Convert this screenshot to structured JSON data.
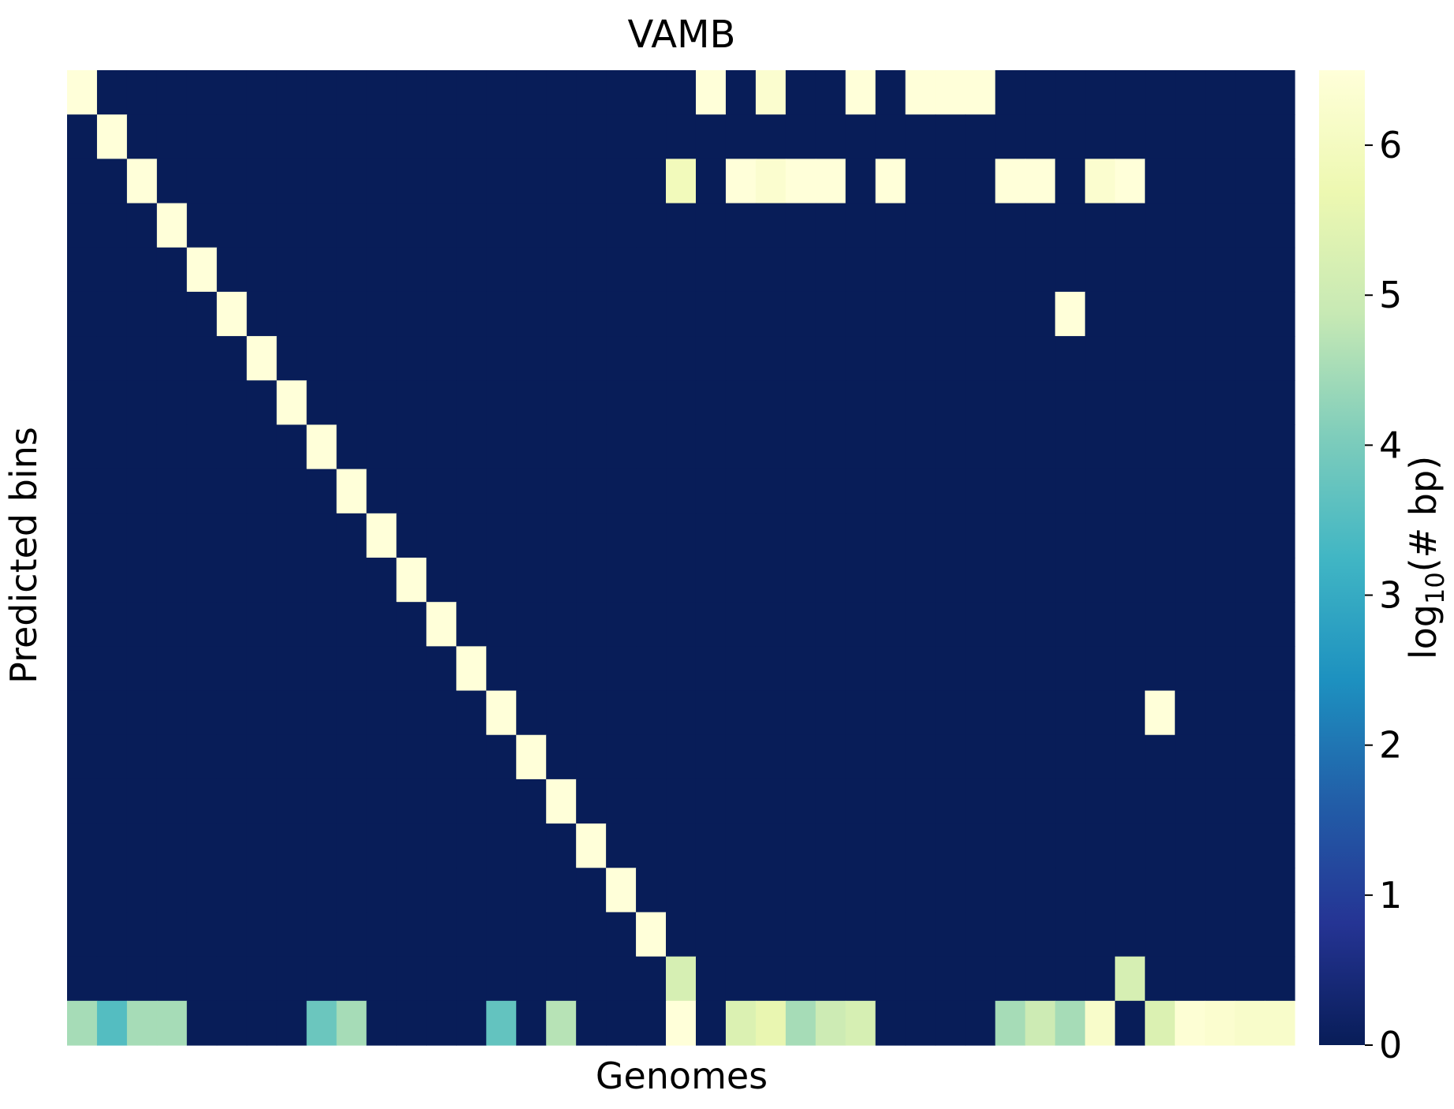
{
  "chart_data": {
    "type": "heatmap",
    "title": "VAMB",
    "xlabel": "Genomes",
    "ylabel": "Predicted bins",
    "colorbar": {
      "label_base": "log",
      "label_sub": "10",
      "label_rest": "(# bp)",
      "range": [
        0,
        6.5
      ],
      "ticks": [
        "0",
        "1",
        "2",
        "3",
        "4",
        "5",
        "6"
      ],
      "colormap": "YlGnBu",
      "stops": [
        "#081d58",
        "#253494",
        "#225ea8",
        "#1d91c0",
        "#41b6c4",
        "#7fcdbb",
        "#c7e9b4",
        "#edf8b1",
        "#ffffd9"
      ]
    },
    "n_cols": 41,
    "n_rows": 22,
    "values": [
      [
        6.5,
        0,
        0,
        0,
        0,
        0,
        0,
        0,
        0,
        0,
        0,
        0,
        0,
        0,
        0,
        0,
        0,
        0,
        0,
        0,
        0,
        6.5,
        0,
        6.3,
        0,
        0,
        6.5,
        0,
        6.5,
        6.5,
        6.5,
        0,
        0,
        0,
        0,
        0,
        0,
        0,
        0,
        0,
        0
      ],
      [
        0,
        6.5,
        0,
        0,
        0,
        0,
        0,
        0,
        0,
        0,
        0,
        0,
        0,
        0,
        0,
        0,
        0,
        0,
        0,
        0,
        0,
        0,
        0,
        0,
        0,
        0,
        0,
        0,
        0,
        0,
        0,
        0,
        0,
        0,
        0,
        0,
        0,
        0,
        0,
        0,
        0
      ],
      [
        0,
        0,
        6.5,
        0,
        0,
        0,
        0,
        0,
        0,
        0,
        0,
        0,
        0,
        0,
        0,
        0,
        0,
        0,
        0,
        0,
        5.9,
        0,
        6.5,
        6.3,
        6.5,
        6.5,
        0,
        6.5,
        0,
        0,
        0,
        6.5,
        6.5,
        0,
        6.3,
        6.5,
        0,
        0,
        0,
        0,
        0
      ],
      [
        0,
        0,
        0,
        6.5,
        0,
        0,
        0,
        0,
        0,
        0,
        0,
        0,
        0,
        0,
        0,
        0,
        0,
        0,
        0,
        0,
        0,
        0,
        0,
        0,
        0,
        0,
        0,
        0,
        0,
        0,
        0,
        0,
        0,
        0,
        0,
        0,
        0,
        0,
        0,
        0,
        0
      ],
      [
        0,
        0,
        0,
        0,
        6.5,
        0,
        0,
        0,
        0,
        0,
        0,
        0,
        0,
        0,
        0,
        0,
        0,
        0,
        0,
        0,
        0,
        0,
        0,
        0,
        0,
        0,
        0,
        0,
        0,
        0,
        0,
        0,
        0,
        0,
        0,
        0,
        0,
        0,
        0,
        0,
        0
      ],
      [
        0,
        0,
        0,
        0,
        0,
        6.5,
        0,
        0,
        0,
        0,
        0,
        0,
        0,
        0,
        0,
        0,
        0,
        0,
        0,
        0,
        0,
        0,
        0,
        0,
        0,
        0,
        0,
        0,
        0,
        0,
        0,
        0,
        0,
        6.5,
        0,
        0,
        0,
        0,
        0,
        0,
        0
      ],
      [
        0,
        0,
        0,
        0,
        0,
        0,
        6.5,
        0,
        0,
        0,
        0,
        0,
        0,
        0,
        0,
        0,
        0,
        0,
        0,
        0,
        0,
        0,
        0,
        0,
        0,
        0,
        0,
        0,
        0,
        0,
        0,
        0,
        0,
        0,
        0,
        0,
        0,
        0,
        0,
        0,
        0
      ],
      [
        0,
        0,
        0,
        0,
        0,
        0,
        0,
        6.5,
        0,
        0,
        0,
        0,
        0,
        0,
        0,
        0,
        0,
        0,
        0,
        0,
        0,
        0,
        0,
        0,
        0,
        0,
        0,
        0,
        0,
        0,
        0,
        0,
        0,
        0,
        0,
        0,
        0,
        0,
        0,
        0,
        0
      ],
      [
        0,
        0,
        0,
        0,
        0,
        0,
        0,
        0,
        6.5,
        0,
        0,
        0,
        0,
        0,
        0,
        0,
        0,
        0,
        0,
        0,
        0,
        0,
        0,
        0,
        0,
        0,
        0,
        0,
        0,
        0,
        0,
        0,
        0,
        0,
        0,
        0,
        0,
        0,
        0,
        0,
        0
      ],
      [
        0,
        0,
        0,
        0,
        0,
        0,
        0,
        0,
        0,
        6.5,
        0,
        0,
        0,
        0,
        0,
        0,
        0,
        0,
        0,
        0,
        0,
        0,
        0,
        0,
        0,
        0,
        0,
        0,
        0,
        0,
        0,
        0,
        0,
        0,
        0,
        0,
        0,
        0,
        0,
        0,
        0
      ],
      [
        0,
        0,
        0,
        0,
        0,
        0,
        0,
        0,
        0,
        0,
        6.5,
        0,
        0,
        0,
        0,
        0,
        0,
        0,
        0,
        0,
        0,
        0,
        0,
        0,
        0,
        0,
        0,
        0,
        0,
        0,
        0,
        0,
        0,
        0,
        0,
        0,
        0,
        0,
        0,
        0,
        0
      ],
      [
        0,
        0,
        0,
        0,
        0,
        0,
        0,
        0,
        0,
        0,
        0,
        6.5,
        0,
        0,
        0,
        0,
        0,
        0,
        0,
        0,
        0,
        0,
        0,
        0,
        0,
        0,
        0,
        0,
        0,
        0,
        0,
        0,
        0,
        0,
        0,
        0,
        0,
        0,
        0,
        0,
        0
      ],
      [
        0,
        0,
        0,
        0,
        0,
        0,
        0,
        0,
        0,
        0,
        0,
        0,
        6.5,
        0,
        0,
        0,
        0,
        0,
        0,
        0,
        0,
        0,
        0,
        0,
        0,
        0,
        0,
        0,
        0,
        0,
        0,
        0,
        0,
        0,
        0,
        0,
        0,
        0,
        0,
        0,
        0
      ],
      [
        0,
        0,
        0,
        0,
        0,
        0,
        0,
        0,
        0,
        0,
        0,
        0,
        0,
        6.5,
        0,
        0,
        0,
        0,
        0,
        0,
        0,
        0,
        0,
        0,
        0,
        0,
        0,
        0,
        0,
        0,
        0,
        0,
        0,
        0,
        0,
        0,
        0,
        0,
        0,
        0,
        0
      ],
      [
        0,
        0,
        0,
        0,
        0,
        0,
        0,
        0,
        0,
        0,
        0,
        0,
        0,
        0,
        6.5,
        0,
        0,
        0,
        0,
        0,
        0,
        0,
        0,
        0,
        0,
        0,
        0,
        0,
        0,
        0,
        0,
        0,
        0,
        0,
        0,
        0,
        6.5,
        0,
        0,
        0,
        0
      ],
      [
        0,
        0,
        0,
        0,
        0,
        0,
        0,
        0,
        0,
        0,
        0,
        0,
        0,
        0,
        0,
        6.5,
        0,
        0,
        0,
        0,
        0,
        0,
        0,
        0,
        0,
        0,
        0,
        0,
        0,
        0,
        0,
        0,
        0,
        0,
        0,
        0,
        0,
        0,
        0,
        0,
        0
      ],
      [
        0,
        0,
        0,
        0,
        0,
        0,
        0,
        0,
        0,
        0,
        0,
        0,
        0,
        0,
        0,
        0,
        6.5,
        0,
        0,
        0,
        0,
        0,
        0,
        0,
        0,
        0,
        0,
        0,
        0,
        0,
        0,
        0,
        0,
        0,
        0,
        0,
        0,
        0,
        0,
        0,
        0
      ],
      [
        0,
        0,
        0,
        0,
        0,
        0,
        0,
        0,
        0,
        0,
        0,
        0,
        0,
        0,
        0,
        0,
        0,
        6.5,
        0,
        0,
        0,
        0,
        0,
        0,
        0,
        0,
        0,
        0,
        0,
        0,
        0,
        0,
        0,
        0,
        0,
        0,
        0,
        0,
        0,
        0,
        0
      ],
      [
        0,
        0,
        0,
        0,
        0,
        0,
        0,
        0,
        0,
        0,
        0,
        0,
        0,
        0,
        0,
        0,
        0,
        0,
        6.5,
        0,
        0,
        0,
        0,
        0,
        0,
        0,
        0,
        0,
        0,
        0,
        0,
        0,
        0,
        0,
        0,
        0,
        0,
        0,
        0,
        0,
        0
      ],
      [
        0,
        0,
        0,
        0,
        0,
        0,
        0,
        0,
        0,
        0,
        0,
        0,
        0,
        0,
        0,
        0,
        0,
        0,
        0,
        6.5,
        0,
        0,
        0,
        0,
        0,
        0,
        0,
        0,
        0,
        0,
        0,
        0,
        0,
        0,
        0,
        0,
        0,
        0,
        0,
        0,
        0
      ],
      [
        0,
        0,
        0,
        0,
        0,
        0,
        0,
        0,
        0,
        0,
        0,
        0,
        0,
        0,
        0,
        0,
        0,
        0,
        0,
        0,
        5.2,
        0,
        0,
        0,
        0,
        0,
        0,
        0,
        0,
        0,
        0,
        0,
        0,
        0,
        0,
        5.2,
        0,
        0,
        0,
        0,
        0
      ],
      [
        4.5,
        3.5,
        4.5,
        4.5,
        0,
        0,
        0,
        0,
        3.8,
        4.5,
        0,
        0,
        0,
        0,
        3.7,
        0,
        4.7,
        0,
        0,
        0,
        6.5,
        0,
        5.3,
        5.6,
        4.5,
        5.0,
        5.2,
        0,
        0,
        0,
        0,
        4.5,
        5.0,
        4.5,
        6.2,
        0,
        5.3,
        6.4,
        6.3,
        6.2,
        6.2
      ]
    ]
  }
}
